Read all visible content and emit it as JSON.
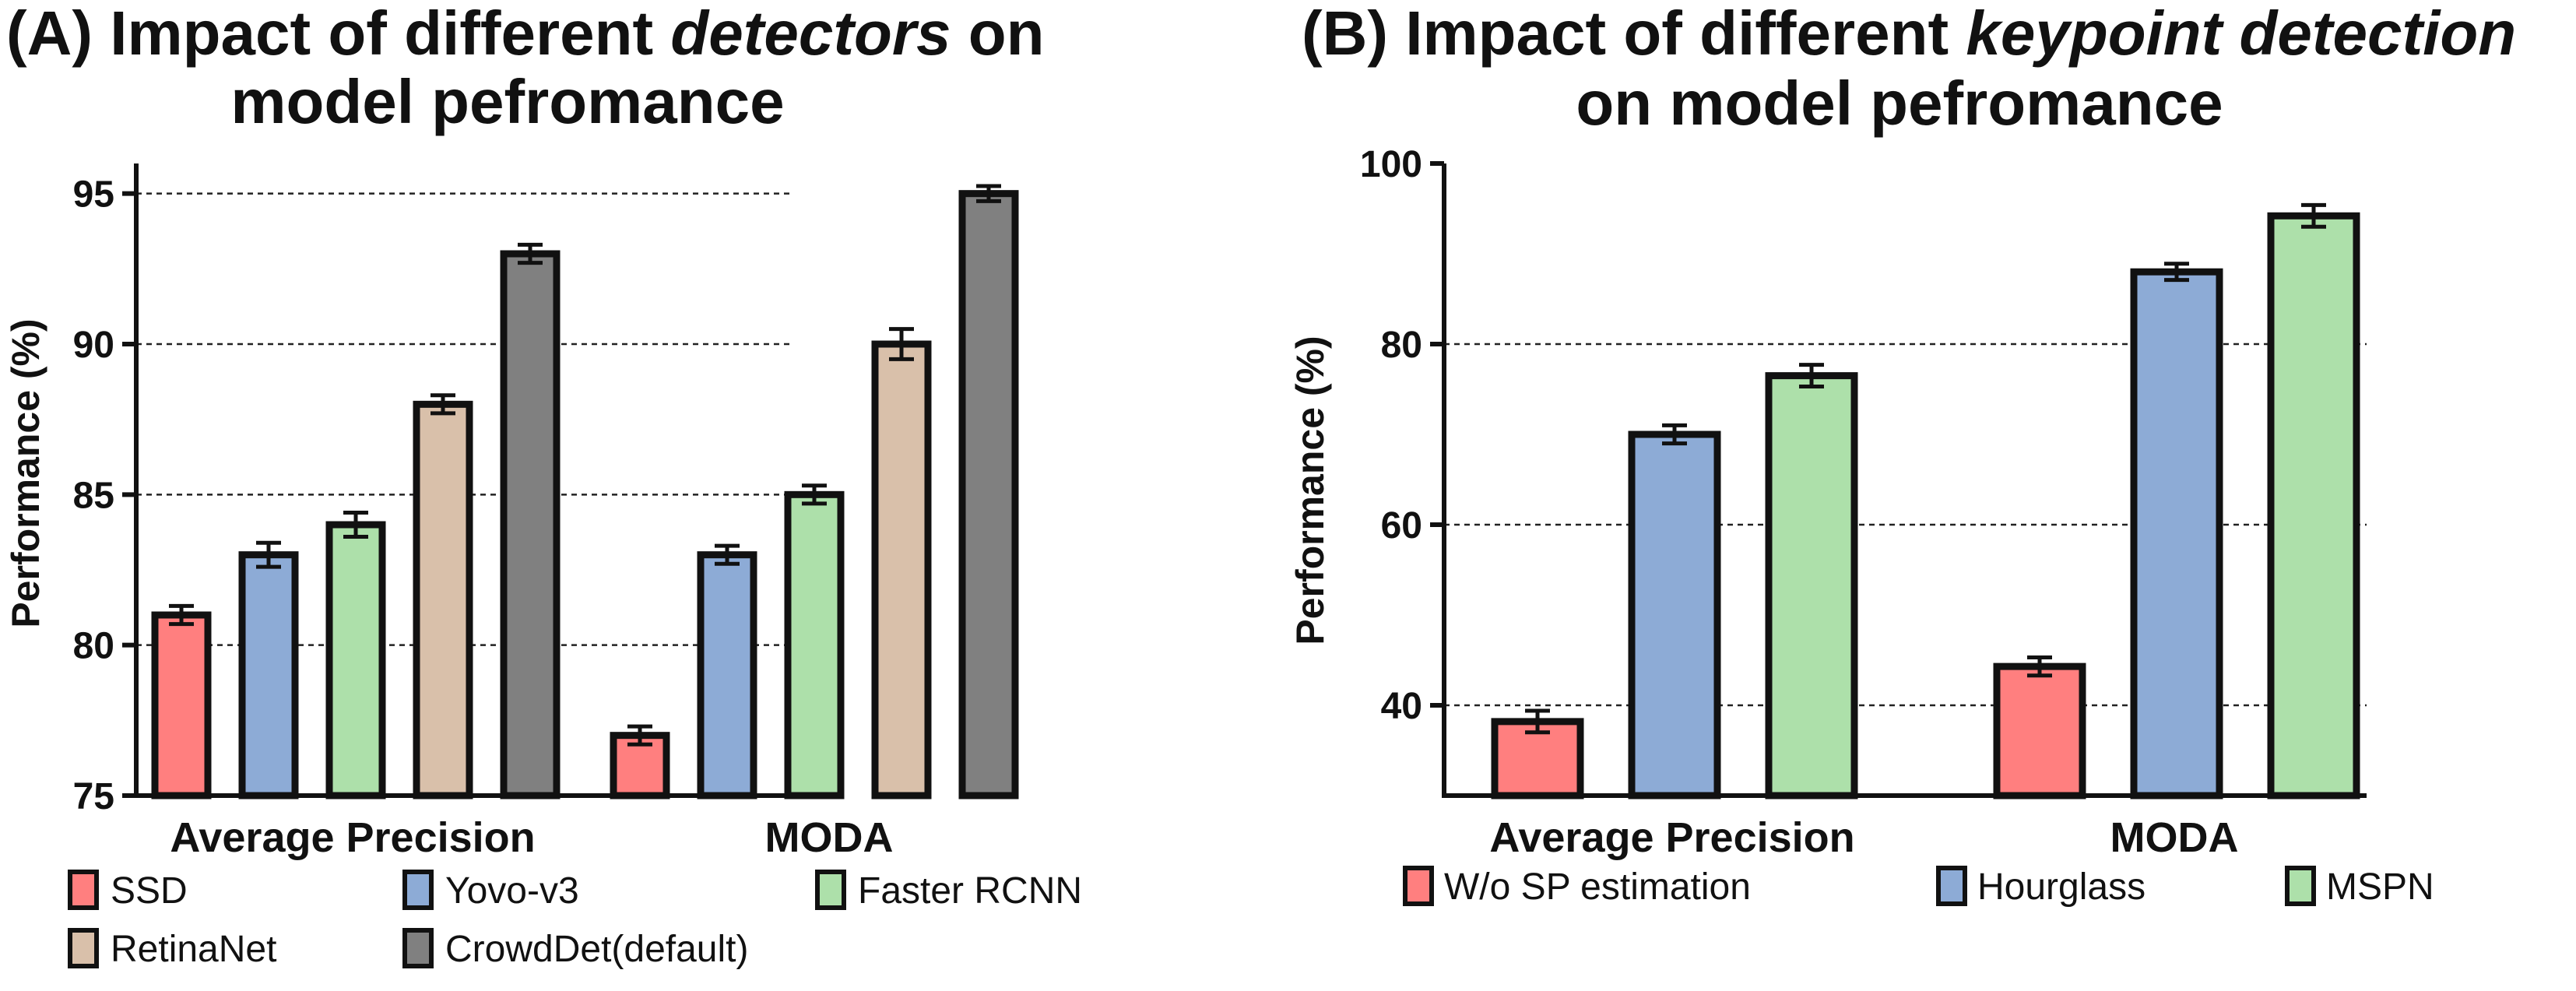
{
  "chart_data": [
    {
      "type": "bar",
      "panel_label": "(A)",
      "title_part1": "Impact of different",
      "title_emph": "detectors",
      "title_part2": "on",
      "title_line2": "model pefromance",
      "ylabel": "Performance (%)",
      "xlabel": "",
      "categories": [
        "Average Precision",
        "MODA"
      ],
      "ylim": [
        75,
        96
      ],
      "yticks": [
        75,
        80,
        85,
        90,
        95
      ],
      "gridlines": [
        80,
        85,
        90,
        95
      ],
      "series": [
        {
          "name": "SSD",
          "color": "#ff7f7f",
          "values": [
            81.0,
            77.0
          ],
          "errors": [
            0.3,
            0.3
          ]
        },
        {
          "name": "Yovo-v3",
          "color": "#8dabd6",
          "values": [
            83.0,
            83.0
          ],
          "errors": [
            0.4,
            0.3
          ]
        },
        {
          "name": "Faster RCNN",
          "color": "#ade0aa",
          "values": [
            84.0,
            85.0
          ],
          "errors": [
            0.4,
            0.3
          ]
        },
        {
          "name": "RetinaNet",
          "color": "#d9c0aa",
          "values": [
            88.0,
            90.0
          ],
          "errors": [
            0.3,
            0.5
          ]
        },
        {
          "name": "CrowdDet(default)",
          "color": "#808080",
          "values": [
            93.0,
            95.0
          ],
          "errors": [
            0.3,
            0.25
          ]
        }
      ],
      "legend_position": "bottom"
    },
    {
      "type": "bar",
      "panel_label": "(B)",
      "title_part1": "Impact of different",
      "title_emph": "keypoint detection",
      "title_part2": "",
      "title_line2": "on model pefromance",
      "ylabel": "Performance (%)",
      "xlabel": "",
      "categories": [
        "Average Precision",
        "MODA"
      ],
      "ylim": [
        30,
        100
      ],
      "yticks": [
        40,
        60,
        80,
        100
      ],
      "gridlines": [
        40,
        60,
        80
      ],
      "series": [
        {
          "name": "W/o SP estimation",
          "color": "#ff7f7f",
          "values": [
            38.2,
            44.3
          ],
          "errors": [
            1.2,
            1.0
          ]
        },
        {
          "name": "Hourglass",
          "color": "#8dabd6",
          "values": [
            70.0,
            88.0
          ],
          "errors": [
            1.0,
            0.9
          ]
        },
        {
          "name": "MSPN",
          "color": "#ade0aa",
          "values": [
            76.5,
            94.2
          ],
          "errors": [
            1.2,
            1.2
          ]
        }
      ],
      "legend_position": "bottom"
    }
  ]
}
